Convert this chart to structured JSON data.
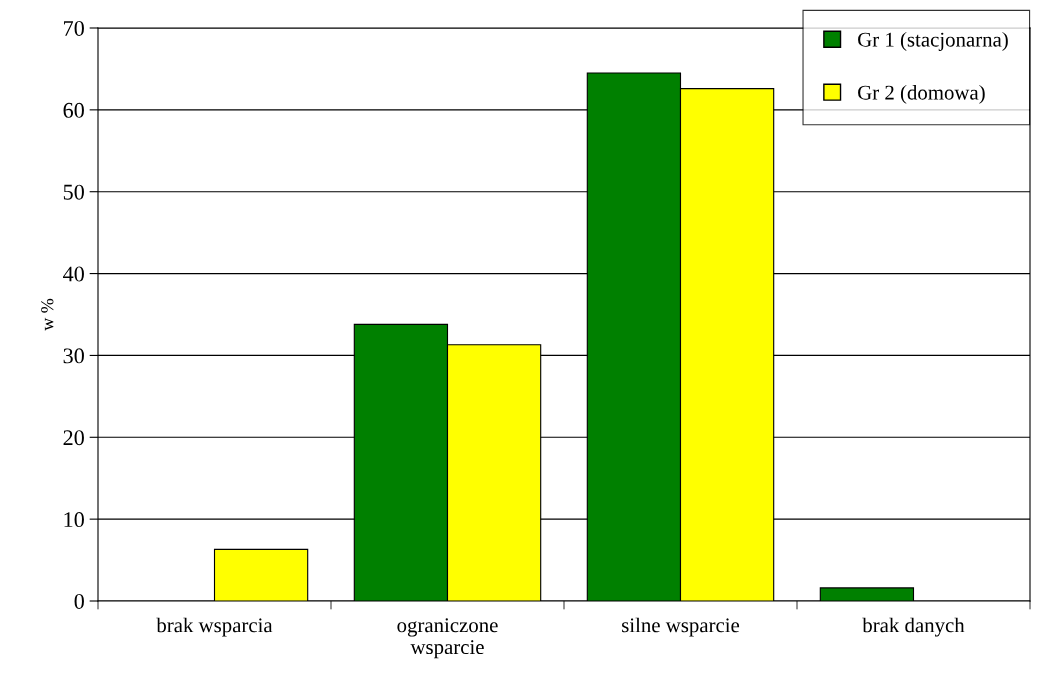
{
  "chart_data": {
    "type": "bar",
    "ylabel": "w %",
    "categories": [
      "brak wsparcia",
      "ograniczone\nwsparcie",
      "silne wsparcie",
      "brak danych"
    ],
    "series": [
      {
        "name": "Gr 1 (stacjonarna)",
        "color": "#008000",
        "values": [
          0,
          33.8,
          64.5,
          1.6
        ]
      },
      {
        "name": "Gr 2 (domowa)",
        "color": "#ffff00",
        "values": [
          6.3,
          31.3,
          62.6,
          0
        ]
      }
    ],
    "ylim": [
      0,
      70
    ],
    "yticks": [
      0,
      10,
      20,
      30,
      40,
      50,
      60,
      70
    ],
    "grid": "y",
    "legend": "top right"
  }
}
